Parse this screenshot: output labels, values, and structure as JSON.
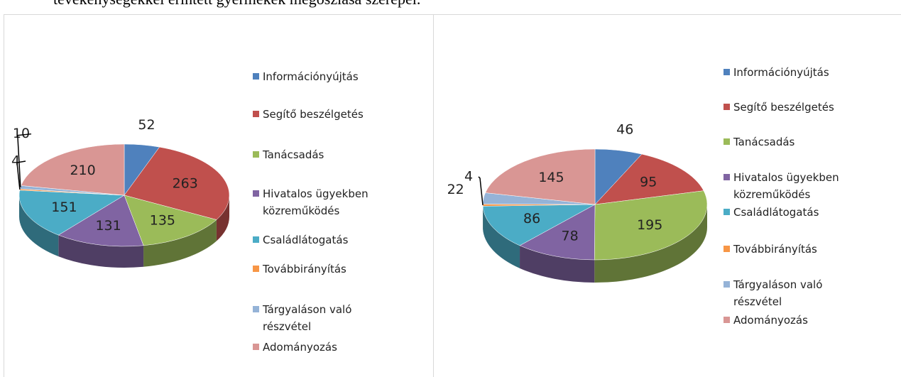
{
  "caption": "tevékenységekkel érintett gyermekek megoszlása szerepel.",
  "chart_data": [
    {
      "type": "pie",
      "categories": [
        "Információnyújtás",
        "Segítő beszélgetés",
        "Tanácsadás",
        "Hivatalos ügyekben közreműködés",
        "Családlátogatás",
        "Továbbirányítás",
        "Tárgyaláson való részvétel",
        "Adományozás"
      ],
      "values": [
        52,
        263,
        135,
        131,
        151,
        4,
        10,
        210
      ],
      "colors": [
        "#4f81bd",
        "#c0504d",
        "#9bbb59",
        "#8064a2",
        "#4bacc6",
        "#f79646",
        "#95b3d7",
        "#d99694"
      ]
    },
    {
      "type": "pie",
      "categories": [
        "Információnyújtás",
        "Segítő beszélgetés",
        "Tanácsadás",
        "Hivatalos ügyekben közreműködés",
        "Családlátogatás",
        "Továbbirányítás",
        "Tárgyaláson való részvétel",
        "Adományozás"
      ],
      "values": [
        46,
        95,
        195,
        78,
        86,
        4,
        22,
        145
      ],
      "colors": [
        "#4f81bd",
        "#c0504d",
        "#9bbb59",
        "#8064a2",
        "#4bacc6",
        "#f79646",
        "#95b3d7",
        "#d99694"
      ]
    }
  ]
}
